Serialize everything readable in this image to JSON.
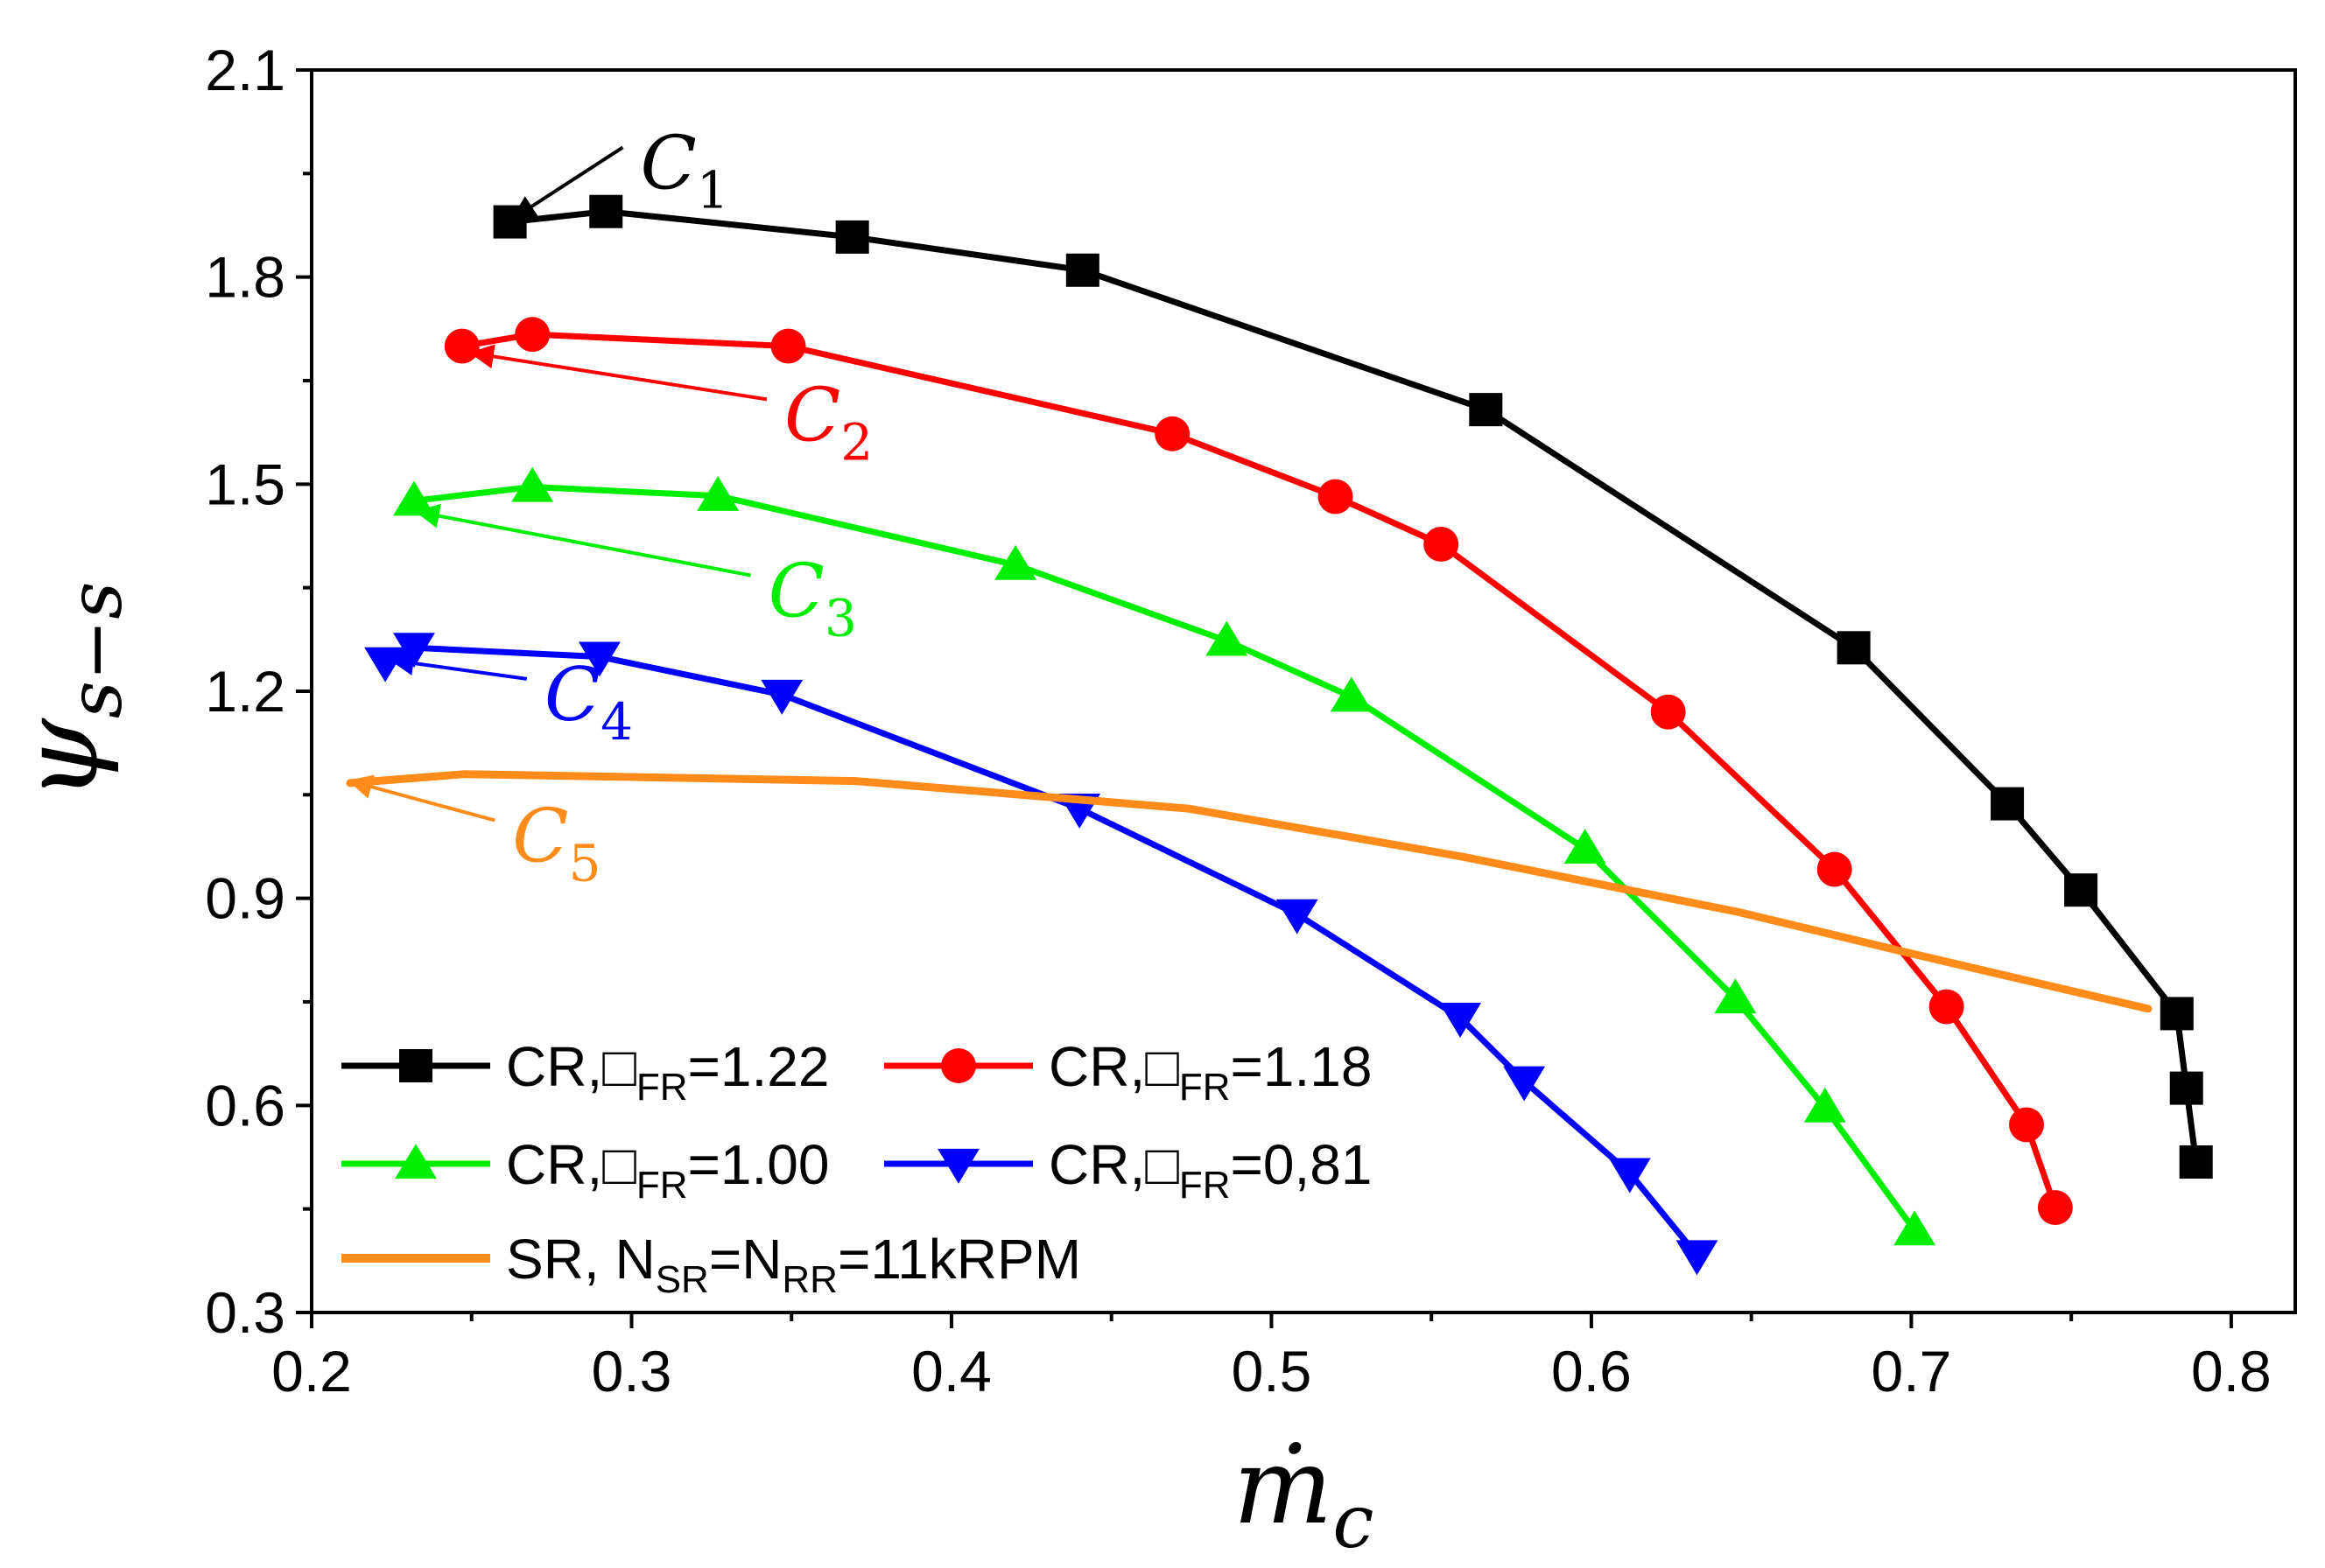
{
  "chart_data": {
    "type": "line",
    "xlabel": {
      "base": "ṁ",
      "sub": "c"
    },
    "ylabel": {
      "base": "ψ",
      "sub": "s−s"
    },
    "xlim": [
      0.2,
      0.82
    ],
    "ylim": [
      0.3,
      2.1
    ],
    "xticks": [
      0.2,
      0.3,
      0.4,
      0.5,
      0.6,
      0.7,
      0.8
    ],
    "yticks": [
      0.3,
      0.6,
      0.9,
      1.2,
      1.5,
      1.8,
      2.1
    ],
    "xtick_labels": [
      "0.2",
      "0.3",
      "0.4",
      "0.5",
      "0.6",
      "0.7",
      "0.8"
    ],
    "ytick_labels": [
      "0.3",
      "0.6",
      "0.9",
      "1.2",
      "1.5",
      "1.8",
      "2.1"
    ],
    "series": [
      {
        "name": "CR,□FR=1.22",
        "legend": {
          "pre": "CR,□",
          "sub": "FR",
          "post": "=1.22"
        },
        "color": "#000000",
        "marker": "square",
        "x": [
          0.262,
          0.292,
          0.369,
          0.441,
          0.567,
          0.682,
          0.73,
          0.753,
          0.783,
          0.786,
          0.789
        ],
        "y": [
          1.88,
          1.895,
          1.858,
          1.81,
          1.608,
          1.263,
          1.037,
          0.912,
          0.733,
          0.625,
          0.518
        ]
      },
      {
        "name": "CR,□FR=1.18",
        "legend": {
          "pre": "CR,□",
          "sub": "FR",
          "post": "=1.18"
        },
        "color": "#ff0000",
        "marker": "circle",
        "x": [
          0.247,
          0.269,
          0.349,
          0.469,
          0.52,
          0.553,
          0.624,
          0.676,
          0.711,
          0.736,
          0.745
        ],
        "y": [
          1.7,
          1.717,
          1.7,
          1.573,
          1.482,
          1.413,
          1.17,
          0.942,
          0.743,
          0.572,
          0.452
        ]
      },
      {
        "name": "CR,□FR=1.00",
        "legend": {
          "pre": "CR,□",
          "sub": "FR",
          "post": "=1.00"
        },
        "color": "#00ee00",
        "marker": "triangle-up",
        "x": [
          0.232,
          0.269,
          0.327,
          0.42,
          0.486,
          0.525,
          0.598,
          0.645,
          0.673,
          0.701
        ],
        "y": [
          1.476,
          1.496,
          1.483,
          1.383,
          1.273,
          1.192,
          0.972,
          0.755,
          0.597,
          0.419
        ]
      },
      {
        "name": "CR,□FR=0,81",
        "legend": {
          "pre": "CR,□",
          "sub": "FR",
          "post": "=0,81"
        },
        "color": "#0000ff",
        "marker": "triangle-down",
        "x": [
          0.223,
          0.232,
          0.29,
          0.347,
          0.44,
          0.508,
          0.559,
          0.579,
          0.612,
          0.633
        ],
        "y": [
          1.242,
          1.263,
          1.25,
          1.195,
          1.03,
          0.877,
          0.727,
          0.635,
          0.502,
          0.383
        ]
      },
      {
        "name": "SR, NSR=NRR=11kRPM",
        "legend": {
          "pre": "SR, N",
          "sub": "SR",
          "mid": "=N",
          "sub2": "RR",
          "post": "=11kRPM"
        },
        "color": "#ff8c1a",
        "marker": "none",
        "x": [
          0.212,
          0.248,
          0.37,
          0.474,
          0.56,
          0.646,
          0.7,
          0.774
        ],
        "y": [
          1.067,
          1.08,
          1.07,
          1.03,
          0.96,
          0.88,
          0.82,
          0.74
        ]
      }
    ],
    "annotations": [
      {
        "id": "C1",
        "base": "C",
        "sub": "1",
        "color": "#000000",
        "point": [
          0.263,
          1.885
        ],
        "label_at": [
          0.3,
          1.96
        ]
      },
      {
        "id": "C2",
        "base": "C",
        "sub": "2",
        "color": "#ff0000",
        "point": [
          0.25,
          1.69
        ],
        "label_at": [
          0.345,
          1.595
        ]
      },
      {
        "id": "C3",
        "base": "C",
        "sub": "3",
        "color": "#00ee00",
        "point": [
          0.233,
          1.46
        ],
        "label_at": [
          0.34,
          1.34
        ]
      },
      {
        "id": "C4",
        "base": "C",
        "sub": "4",
        "color": "#0000ff",
        "point": [
          0.225,
          1.245
        ],
        "label_at": [
          0.27,
          1.19
        ]
      },
      {
        "id": "C5",
        "base": "C",
        "sub": "5",
        "color": "#ff8c1a",
        "point": [
          0.212,
          1.07
        ],
        "label_at": [
          0.26,
          0.985
        ]
      }
    ]
  }
}
